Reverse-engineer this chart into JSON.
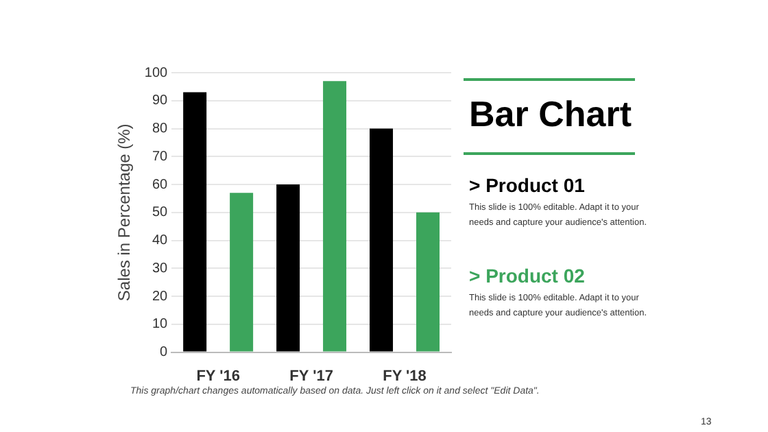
{
  "chart_data": {
    "type": "bar",
    "title": "Bar Chart",
    "ylabel": "Sales in Percentage (%)",
    "categories": [
      "FY '16",
      "FY '17",
      "FY '18"
    ],
    "series": [
      {
        "name": "> Product 01",
        "color": "#000000",
        "values": [
          93,
          60,
          80
        ]
      },
      {
        "name": "> Product 02",
        "color": "#3ca55c",
        "values": [
          57,
          97,
          50
        ]
      }
    ],
    "ylim": [
      0,
      100
    ],
    "yticks": [
      0,
      10,
      20,
      30,
      40,
      50,
      60,
      70,
      80,
      90,
      100
    ],
    "grid": "y",
    "legend": false,
    "annotations": [
      "This slide is 100% editable. Adapt it to your needs and capture your audience's attention.",
      "This slide is 100% editable. Adapt it to your needs and capture your audience's attention.",
      "This graph/chart changes automatically based on data. Just left click on it and select \"Edit Data\".",
      "13"
    ]
  }
}
